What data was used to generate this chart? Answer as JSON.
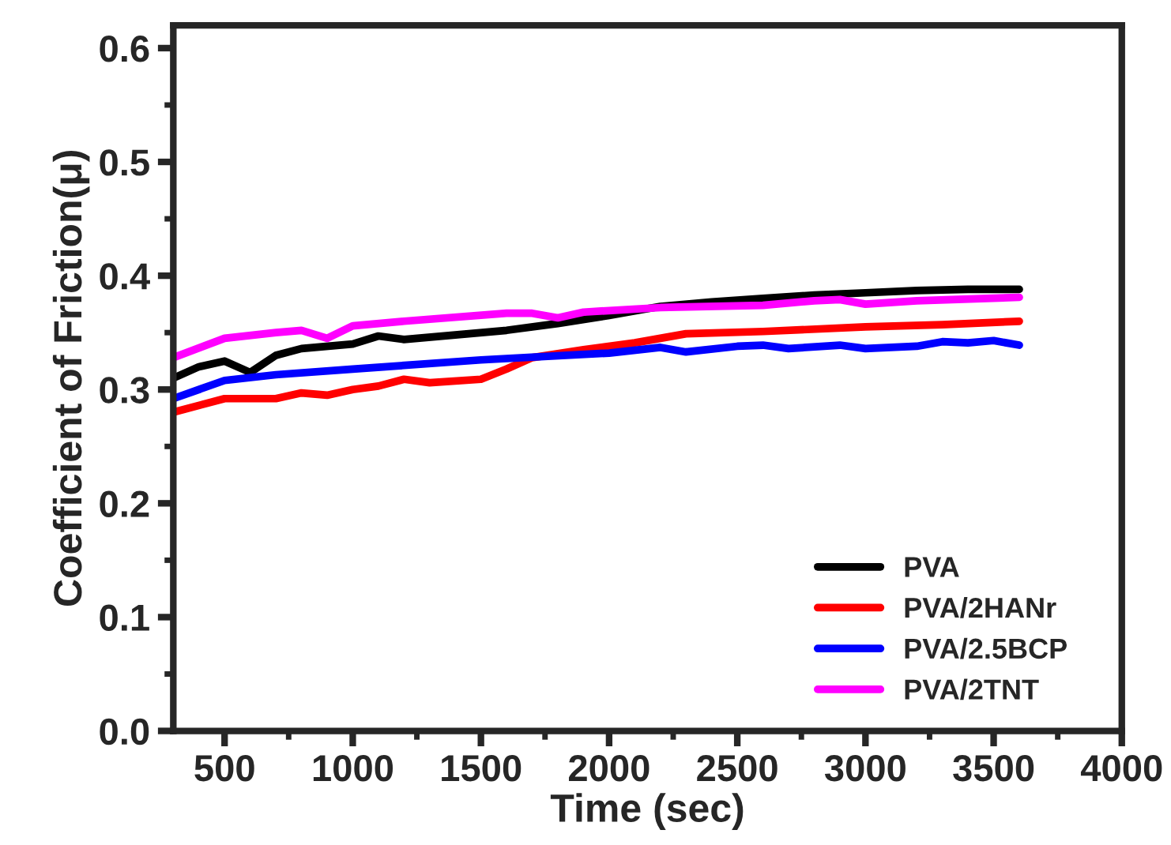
{
  "chart_data": {
    "type": "line",
    "xlabel": "Time (sec)",
    "ylabel": "Coefficient of Friction(μ)",
    "xlim": [
      300,
      4000
    ],
    "xticks": [
      500,
      1000,
      1500,
      2000,
      2500,
      3000,
      3500,
      4000
    ],
    "ylim": [
      0,
      0.62
    ],
    "yticks": [
      {
        "value": 0,
        "label": "0.0"
      },
      0.1,
      0.2,
      0.3,
      0.4,
      0.5,
      0.6
    ],
    "grid": false,
    "legend": "bottom right",
    "series": [
      {
        "name": "PVA",
        "color": "#000000",
        "x": [
          300,
          400,
          500,
          600,
          700,
          800,
          1000,
          1100,
          1200,
          1400,
          1600,
          1800,
          2000,
          2200,
          2400,
          2600,
          2800,
          3000,
          3200,
          3400,
          3600
        ],
        "values": [
          0.31,
          0.32,
          0.325,
          0.315,
          0.33,
          0.336,
          0.34,
          0.347,
          0.344,
          0.348,
          0.352,
          0.358,
          0.365,
          0.373,
          0.377,
          0.38,
          0.383,
          0.385,
          0.387,
          0.388,
          0.388
        ]
      },
      {
        "name": "PVA/2HANr",
        "color": "#ff0000",
        "x": [
          300,
          500,
          700,
          800,
          900,
          1000,
          1100,
          1200,
          1300,
          1500,
          1600,
          1700,
          1900,
          2100,
          2300,
          2600,
          3000,
          3300,
          3600
        ],
        "values": [
          0.28,
          0.292,
          0.292,
          0.297,
          0.295,
          0.3,
          0.303,
          0.309,
          0.306,
          0.309,
          0.318,
          0.328,
          0.335,
          0.341,
          0.349,
          0.351,
          0.355,
          0.357,
          0.36
        ]
      },
      {
        "name": "PVA/2.5BCP",
        "color": "#0000ff",
        "x": [
          300,
          500,
          700,
          1000,
          1500,
          2000,
          2200,
          2300,
          2500,
          2600,
          2700,
          2900,
          3000,
          3200,
          3300,
          3400,
          3500,
          3600
        ],
        "values": [
          0.292,
          0.308,
          0.313,
          0.318,
          0.326,
          0.332,
          0.337,
          0.333,
          0.338,
          0.339,
          0.336,
          0.339,
          0.336,
          0.338,
          0.342,
          0.341,
          0.343,
          0.339
        ]
      },
      {
        "name": "PVA/2TNT",
        "color": "#ff00ff",
        "x": [
          300,
          500,
          700,
          800,
          900,
          1000,
          1200,
          1600,
          1700,
          1800,
          1900,
          2200,
          2600,
          2800,
          2900,
          3000,
          3200,
          3600
        ],
        "values": [
          0.328,
          0.345,
          0.35,
          0.352,
          0.345,
          0.356,
          0.36,
          0.367,
          0.367,
          0.363,
          0.368,
          0.372,
          0.374,
          0.378,
          0.379,
          0.375,
          0.378,
          0.381
        ]
      }
    ]
  }
}
